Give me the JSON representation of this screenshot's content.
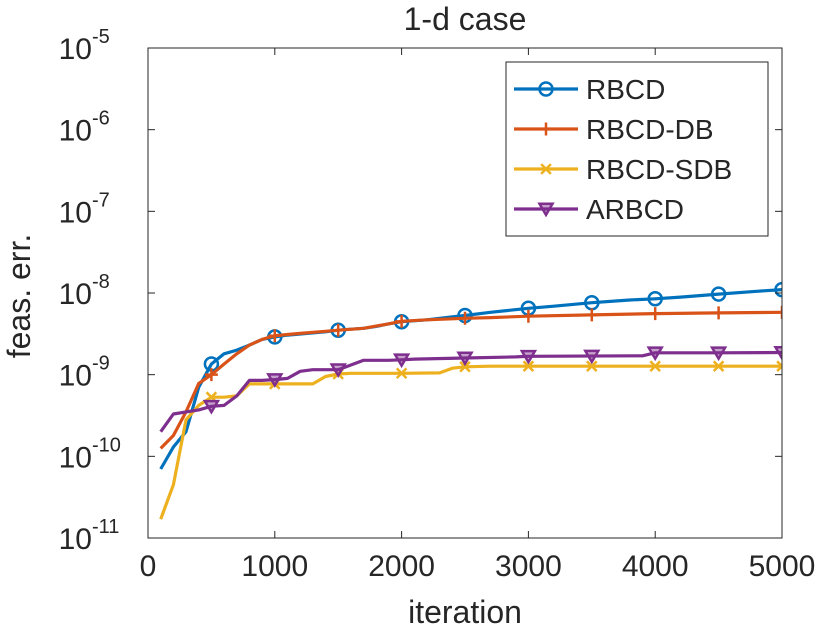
{
  "chart_data": {
    "type": "line",
    "title": "1-d case",
    "xlabel": "iteration",
    "ylabel": "feas. err.",
    "xlim": [
      0,
      5000
    ],
    "ylim": [
      1e-11,
      1e-05
    ],
    "y_scale": "log",
    "x_ticks": [
      "0",
      "1000",
      "2000",
      "3000",
      "4000",
      "5000"
    ],
    "y_ticks": [
      {
        "base": "10",
        "exp": "-11"
      },
      {
        "base": "10",
        "exp": "-10"
      },
      {
        "base": "10",
        "exp": "-9"
      },
      {
        "base": "10",
        "exp": "-8"
      },
      {
        "base": "10",
        "exp": "-7"
      },
      {
        "base": "10",
        "exp": "-6"
      },
      {
        "base": "10",
        "exp": "-5"
      }
    ],
    "grid": false,
    "legend_position": "top-right",
    "series": [
      {
        "name": "RBCD",
        "color": "#0072BD",
        "marker": "circle",
        "points": [
          [
            100,
            7e-11
          ],
          [
            200,
            1.3e-10
          ],
          [
            300,
            2e-10
          ],
          [
            400,
            7e-10
          ],
          [
            500,
            1.35e-09
          ],
          [
            600,
            1.8e-09
          ],
          [
            700,
            2e-09
          ],
          [
            800,
            2.3e-09
          ],
          [
            900,
            2.7e-09
          ],
          [
            1000,
            2.9e-09
          ],
          [
            1100,
            3.05e-09
          ],
          [
            1200,
            3.15e-09
          ],
          [
            1300,
            3.25e-09
          ],
          [
            1400,
            3.35e-09
          ],
          [
            1500,
            3.5e-09
          ],
          [
            1600,
            3.6e-09
          ],
          [
            1700,
            3.7e-09
          ],
          [
            1800,
            3.9e-09
          ],
          [
            1900,
            4.2e-09
          ],
          [
            2000,
            4.45e-09
          ],
          [
            2200,
            4.7e-09
          ],
          [
            2400,
            5.1e-09
          ],
          [
            2500,
            5.3e-09
          ],
          [
            2700,
            5.8e-09
          ],
          [
            3000,
            6.5e-09
          ],
          [
            3200,
            6.9e-09
          ],
          [
            3500,
            7.6e-09
          ],
          [
            3800,
            8.2e-09
          ],
          [
            4000,
            8.5e-09
          ],
          [
            4200,
            8.9e-09
          ],
          [
            4500,
            9.7e-09
          ],
          [
            4800,
            1.05e-08
          ],
          [
            5000,
            1.1e-08
          ]
        ],
        "marker_x": [
          500,
          1000,
          1500,
          2000,
          2500,
          3000,
          3500,
          4000,
          4500,
          5000
        ]
      },
      {
        "name": "RBCD-DB",
        "color": "#D95319",
        "marker": "plus",
        "points": [
          [
            100,
            1.25e-10
          ],
          [
            200,
            1.8e-10
          ],
          [
            300,
            3.5e-10
          ],
          [
            400,
            7.8e-10
          ],
          [
            500,
            1e-09
          ],
          [
            600,
            1.35e-09
          ],
          [
            700,
            1.8e-09
          ],
          [
            800,
            2.3e-09
          ],
          [
            900,
            2.7e-09
          ],
          [
            1000,
            3e-09
          ],
          [
            1100,
            3.1e-09
          ],
          [
            1200,
            3.2e-09
          ],
          [
            1300,
            3.3e-09
          ],
          [
            1400,
            3.4e-09
          ],
          [
            1500,
            3.5e-09
          ],
          [
            1700,
            3.7e-09
          ],
          [
            1900,
            4.2e-09
          ],
          [
            2000,
            4.5e-09
          ],
          [
            2200,
            4.7e-09
          ],
          [
            2500,
            4.9e-09
          ],
          [
            2700,
            5e-09
          ],
          [
            3000,
            5.2e-09
          ],
          [
            3500,
            5.4e-09
          ],
          [
            4000,
            5.6e-09
          ],
          [
            4500,
            5.7e-09
          ],
          [
            5000,
            5.8e-09
          ]
        ],
        "marker_x": [
          500,
          1000,
          1500,
          2000,
          2500,
          3000,
          3500,
          4000,
          4500,
          5000
        ]
      },
      {
        "name": "RBCD-SDB",
        "color": "#EDB120",
        "marker": "x",
        "points": [
          [
            100,
            1.7e-11
          ],
          [
            200,
            4.5e-11
          ],
          [
            300,
            2.8e-10
          ],
          [
            400,
            4.2e-10
          ],
          [
            500,
            5.3e-10
          ],
          [
            600,
            5.3e-10
          ],
          [
            700,
            5.5e-10
          ],
          [
            800,
            7.7e-10
          ],
          [
            900,
            7.7e-10
          ],
          [
            1000,
            7.7e-10
          ],
          [
            1100,
            7.7e-10
          ],
          [
            1200,
            7.7e-10
          ],
          [
            1300,
            7.7e-10
          ],
          [
            1400,
            9.5e-10
          ],
          [
            1500,
            1.02e-09
          ],
          [
            1600,
            1.04e-09
          ],
          [
            2000,
            1.04e-09
          ],
          [
            2300,
            1.05e-09
          ],
          [
            2400,
            1.2e-09
          ],
          [
            2500,
            1.25e-09
          ],
          [
            2700,
            1.27e-09
          ],
          [
            3000,
            1.27e-09
          ],
          [
            4000,
            1.27e-09
          ],
          [
            5000,
            1.27e-09
          ]
        ],
        "marker_x": [
          500,
          1000,
          1500,
          2000,
          2500,
          3000,
          3500,
          4000,
          4500,
          5000
        ]
      },
      {
        "name": "ARBCD",
        "color": "#7E2F8E",
        "marker": "triangle-down",
        "points": [
          [
            100,
            2e-10
          ],
          [
            200,
            3.3e-10
          ],
          [
            300,
            3.5e-10
          ],
          [
            400,
            3.7e-10
          ],
          [
            500,
            4.1e-10
          ],
          [
            600,
            4.2e-10
          ],
          [
            700,
            5.5e-10
          ],
          [
            800,
            8.5e-10
          ],
          [
            900,
            8.5e-10
          ],
          [
            1000,
            8.7e-10
          ],
          [
            1100,
            9e-10
          ],
          [
            1200,
            1.1e-09
          ],
          [
            1300,
            1.15e-09
          ],
          [
            1500,
            1.15e-09
          ],
          [
            1700,
            1.5e-09
          ],
          [
            1900,
            1.5e-09
          ],
          [
            2000,
            1.52e-09
          ],
          [
            2100,
            1.55e-09
          ],
          [
            2500,
            1.6e-09
          ],
          [
            2900,
            1.65e-09
          ],
          [
            3000,
            1.68e-09
          ],
          [
            3900,
            1.7e-09
          ],
          [
            4000,
            1.85e-09
          ],
          [
            4500,
            1.85e-09
          ],
          [
            5000,
            1.87e-09
          ]
        ],
        "marker_x": [
          500,
          1000,
          1500,
          2000,
          2500,
          3000,
          3500,
          4000,
          4500,
          5000
        ]
      }
    ]
  }
}
